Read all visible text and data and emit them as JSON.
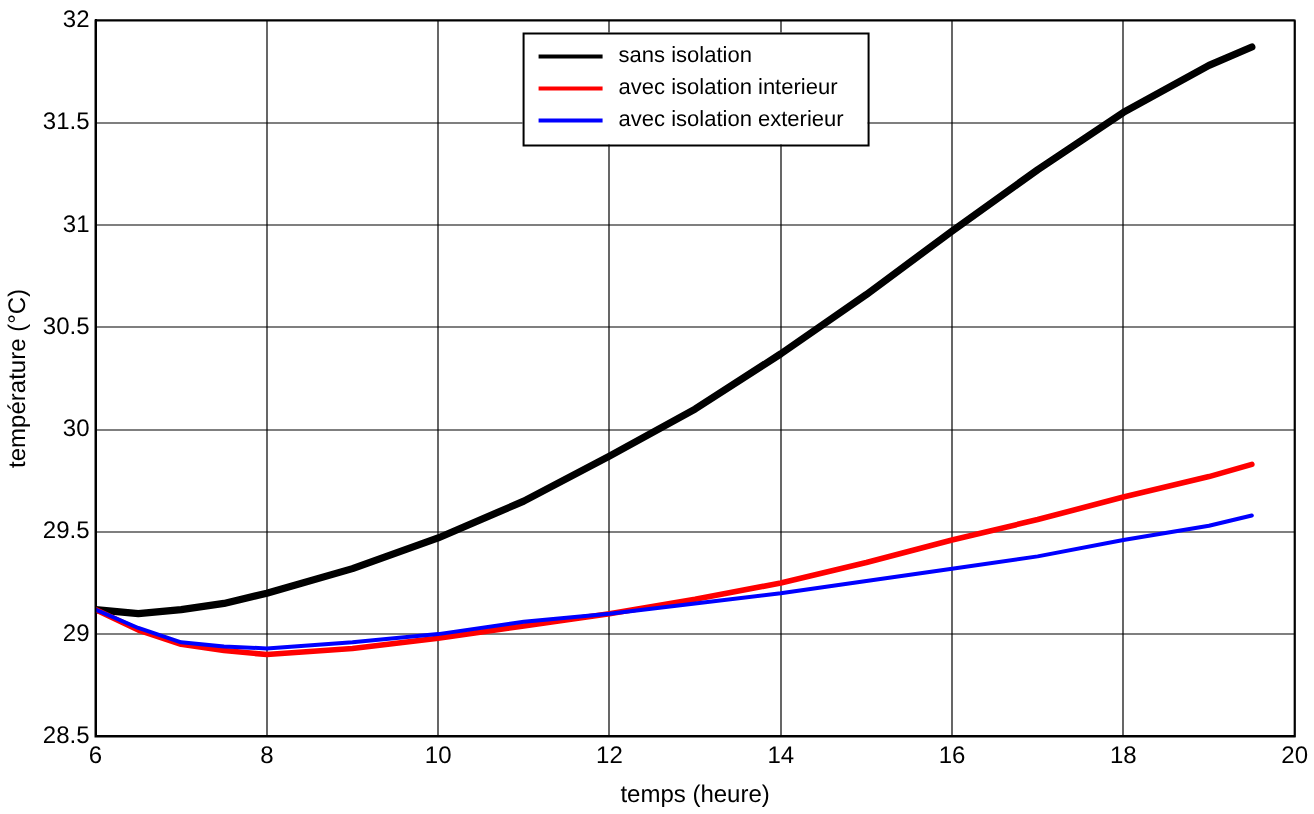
{
  "chart_data": {
    "type": "line",
    "xlabel": "temps (heure)",
    "ylabel": "température (°C)",
    "xlim": [
      6,
      20
    ],
    "xticks": [
      6,
      8,
      10,
      12,
      14,
      16,
      18,
      20
    ],
    "ylim": [
      28.5,
      32
    ],
    "yticks": [
      28.5,
      29,
      29.5,
      30,
      30.5,
      31,
      31.5,
      32
    ],
    "grid": true,
    "legend": "top",
    "line_style": "solid",
    "marker": "none",
    "x": [
      6,
      6.5,
      7,
      7.5,
      8,
      9,
      10,
      11,
      12,
      13,
      14,
      15,
      16,
      17,
      18,
      19,
      19.5
    ],
    "series": [
      {
        "name": "sans isolation",
        "color": "#000000",
        "values": [
          29.12,
          29.1,
          29.12,
          29.15,
          29.2,
          29.32,
          29.47,
          29.65,
          29.87,
          30.1,
          30.37,
          30.66,
          30.97,
          31.27,
          31.55,
          31.78,
          31.87
        ]
      },
      {
        "name": "avec isolation interieur",
        "color": "#ff0000",
        "values": [
          29.12,
          29.02,
          28.95,
          28.92,
          28.9,
          28.93,
          28.98,
          29.04,
          29.1,
          29.17,
          29.25,
          29.35,
          29.46,
          29.56,
          29.67,
          29.77,
          29.83
        ]
      },
      {
        "name": "avec isolation exterieur",
        "color": "#0000ff",
        "values": [
          29.12,
          29.03,
          28.96,
          28.94,
          28.93,
          28.96,
          29.0,
          29.06,
          29.1,
          29.15,
          29.2,
          29.26,
          29.32,
          29.38,
          29.46,
          29.53,
          29.58
        ]
      }
    ]
  }
}
